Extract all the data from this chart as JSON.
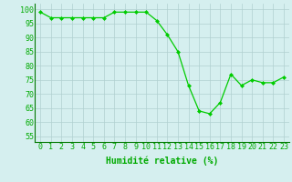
{
  "x": [
    0,
    1,
    2,
    3,
    4,
    5,
    6,
    7,
    8,
    9,
    10,
    11,
    12,
    13,
    14,
    15,
    16,
    17,
    18,
    19,
    20,
    21,
    22,
    23
  ],
  "y": [
    99,
    97,
    97,
    97,
    97,
    97,
    97,
    99,
    99,
    99,
    99,
    96,
    91,
    85,
    73,
    64,
    63,
    67,
    77,
    73,
    75,
    74,
    74,
    76
  ],
  "line_color": "#00cc00",
  "marker_color": "#00cc00",
  "bg_color": "#d5efef",
  "grid_color": "#b0d0d0",
  "xlabel": "Humidité relative (%)",
  "xlabel_color": "#00aa00",
  "ylabel_ticks": [
    55,
    60,
    65,
    70,
    75,
    80,
    85,
    90,
    95,
    100
  ],
  "ylim": [
    53,
    102
  ],
  "xlim": [
    -0.5,
    23.5
  ],
  "tick_color": "#00aa00",
  "label_fontsize": 7,
  "tick_fontsize": 6
}
